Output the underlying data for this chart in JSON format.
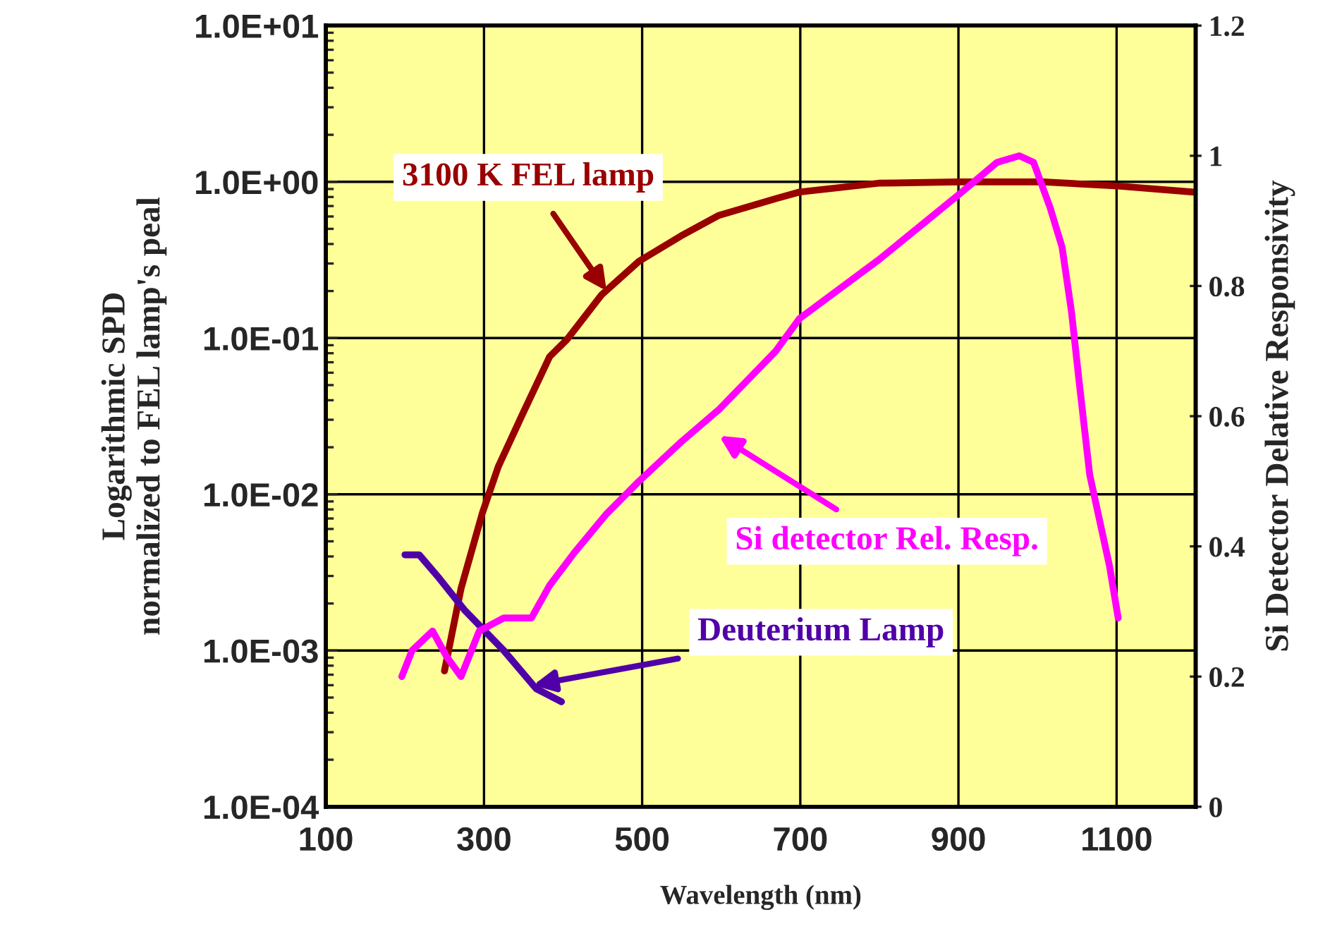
{
  "chart_data": {
    "type": "line",
    "xlabel": "Wavelength (nm)",
    "ylabel": "Logarithmic SPD\nnormalized to FEL lamp's peal",
    "y2label": "Si Detector Delative Responsivity",
    "series": [
      {
        "color": "#990000",
        "x": [
          250,
          271,
          298,
          318,
          348,
          383,
          405,
          449,
          496,
          549,
          597,
          669,
          699,
          799,
          900,
          1007,
          1102,
          1198
        ],
        "values": [
          0.00074,
          0.0025,
          0.0076,
          0.015,
          0.032,
          0.076,
          0.098,
          0.19,
          0.31,
          0.45,
          0.61,
          0.78,
          0.86,
          0.98,
          1.0,
          1.0,
          0.94,
          0.86
        ]
      },
      {
        "color": "#ff00ff",
        "axis": "y2",
        "x": [
          196,
          209,
          235,
          253,
          271,
          294,
          325,
          360,
          383,
          414,
          455,
          496,
          549,
          597,
          669,
          699,
          799,
          900,
          949,
          977,
          995,
          1016,
          1031,
          1043,
          1052,
          1066,
          1091,
          1102
        ],
        "values": [
          0.2,
          0.24,
          0.27,
          0.23,
          0.2,
          0.27,
          0.29,
          0.29,
          0.34,
          0.39,
          0.45,
          0.5,
          0.56,
          0.61,
          0.7,
          0.75,
          0.84,
          0.94,
          0.99,
          1.0,
          0.99,
          0.92,
          0.86,
          0.76,
          0.66,
          0.51,
          0.37,
          0.29
        ]
      },
      {
        "color": "#5000a8",
        "x": [
          200,
          218,
          241,
          276,
          325,
          366,
          398
        ],
        "values": [
          0.0041,
          0.0041,
          0.003,
          0.0018,
          0.001,
          0.00057,
          0.00047
        ]
      }
    ],
    "annotations": [
      {
        "text": "3100 K FEL lamp",
        "x": 455,
        "y": 0.2
      },
      "Si detector Rel. Resp.",
      {
        "text": "Deuterium Lamp",
        "x": 362,
        "y": 0.0006
      }
    ],
    "log": "y",
    "xlim": [
      100,
      1200
    ],
    "xticks": [
      100,
      300,
      500,
      700,
      900,
      1100
    ],
    "ylim": [
      0.0001,
      10
    ],
    "yticks": [
      {
        "value": 0.0001,
        "label": "1.0E-04"
      },
      {
        "value": 0.001,
        "label": "1.0E-03"
      },
      {
        "value": 0.01,
        "label": "1.0E-02"
      },
      {
        "value": 0.1,
        "label": "1.0E-01"
      },
      {
        "value": 1,
        "label": "1.0E+00"
      },
      {
        "value": 10,
        "label": "1.0E+01"
      }
    ],
    "y2lim": [
      0,
      1.2
    ],
    "y2ticks": [
      0,
      0.2,
      0.4,
      0.6,
      0.8,
      1,
      1.2
    ],
    "grid": true,
    "legend": false,
    "line_style": "solid",
    "marker": "none"
  }
}
